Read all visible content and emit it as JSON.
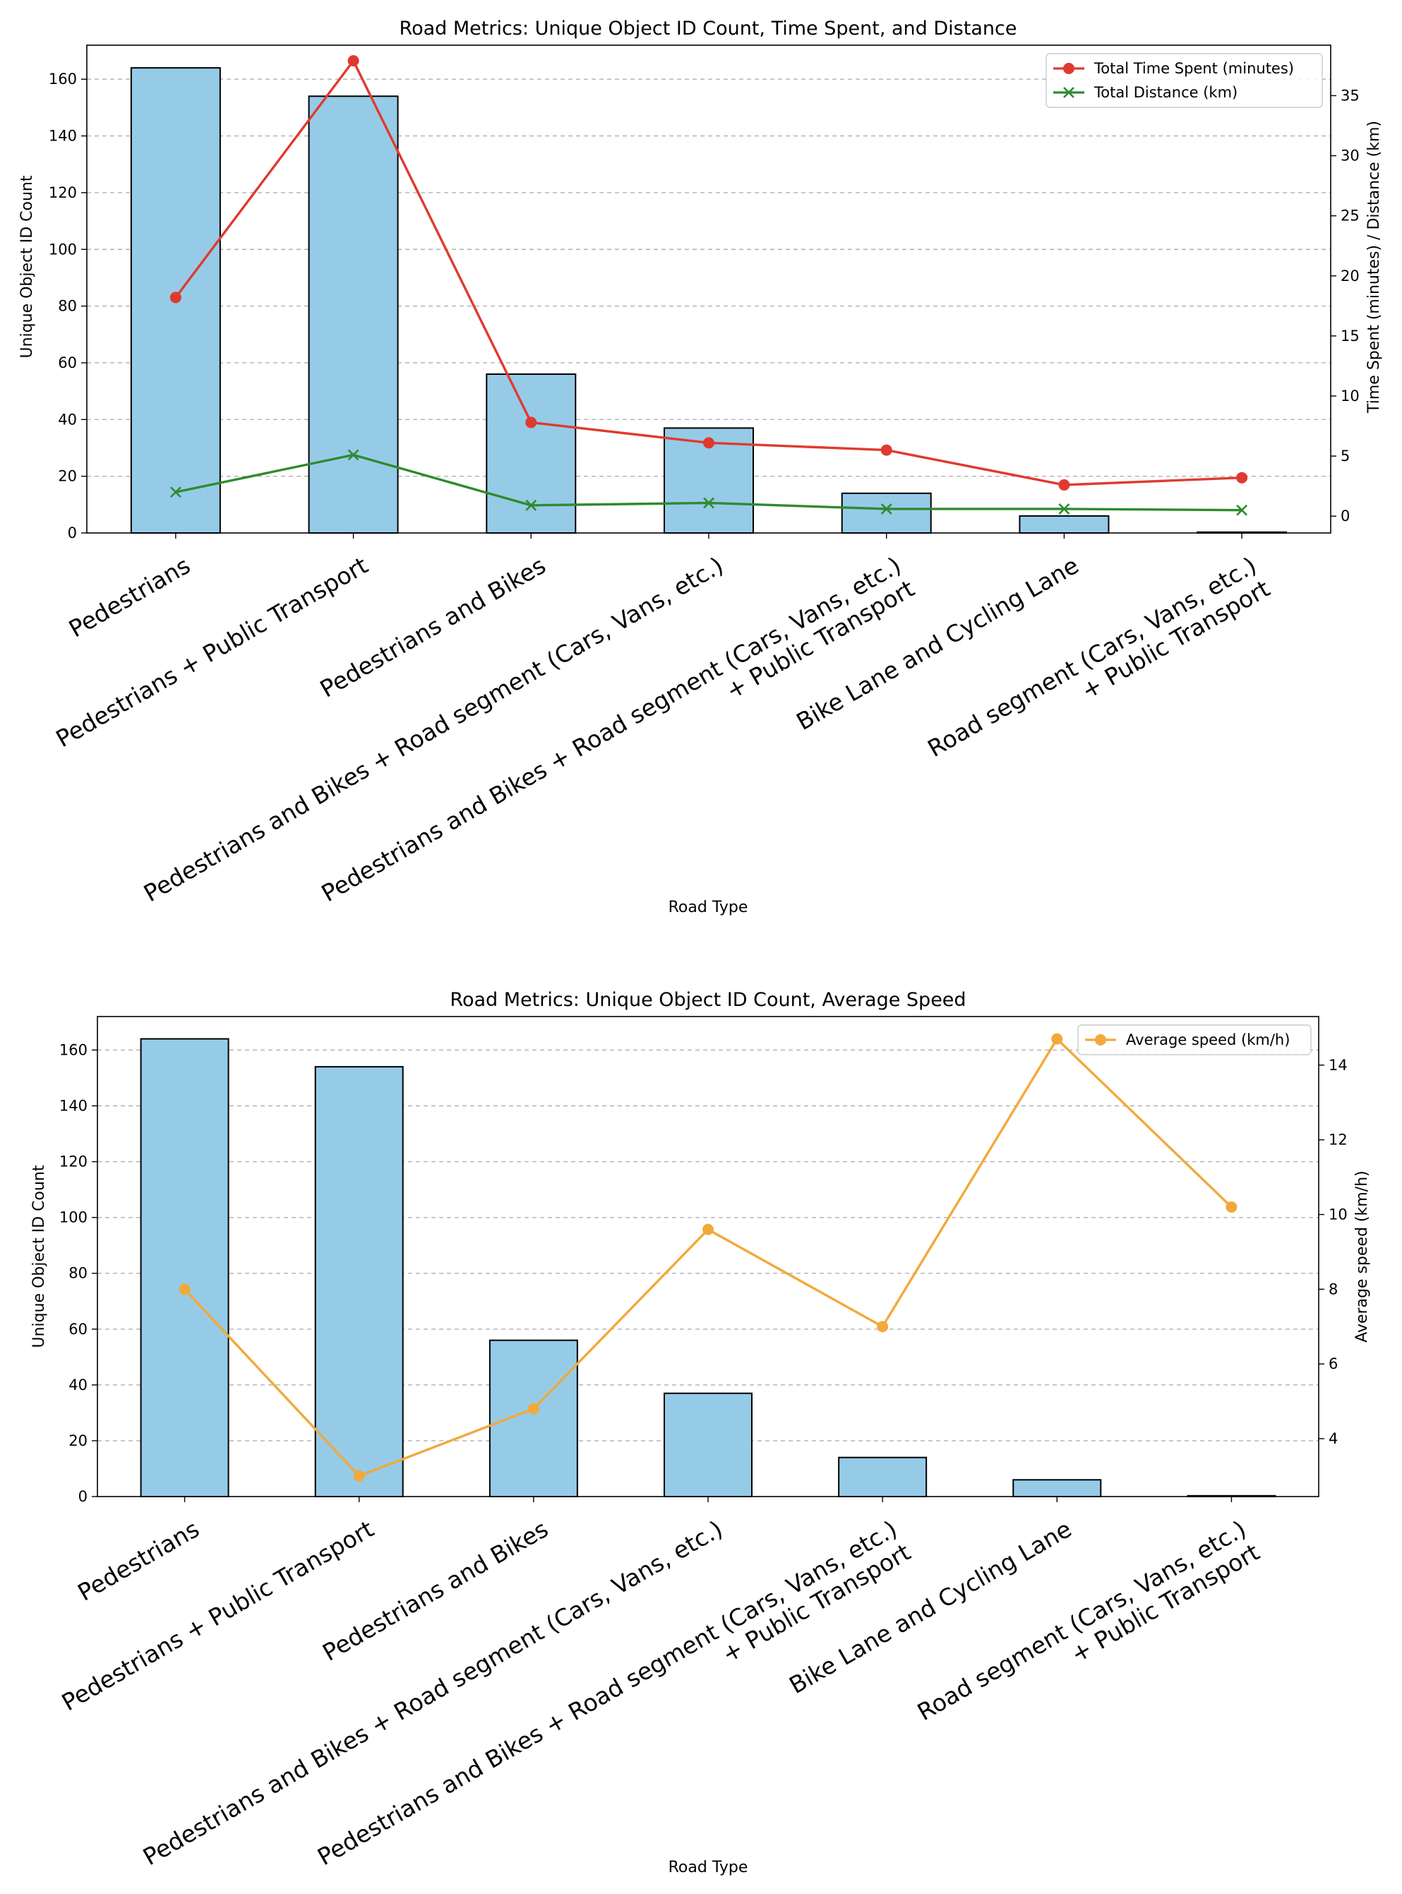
{
  "colors": {
    "bar": "#96cbe8",
    "time": "#e03a2f",
    "distance": "#2e8b2e",
    "speed": "#f2a93b",
    "grid": "#b0b0b0"
  },
  "chart_data": [
    {
      "type": "bar",
      "title": "Road Metrics: Unique Object ID Count, Time Spent, and Distance",
      "xlabel": "Road Type",
      "ylabel": "Unique Object ID Count",
      "ylabel_right": "Time Spent (minutes) / Distance (km)",
      "categories": [
        "Pedestrians",
        "Pedestrians + Public Transport",
        "Pedestrians and Bikes",
        "Pedestrians and Bikes + Road segment (Cars, Vans, etc.)",
        "Pedestrians and Bikes + Road segment (Cars, Vans, etc.)\n+ Public Transport",
        "Bike Lane and Cycling Lane",
        "Road segment (Cars, Vans, etc.)\n+ Public Transport"
      ],
      "values": [
        164,
        154,
        56,
        37,
        14,
        6,
        0.3
      ],
      "ylim": [
        0,
        172
      ],
      "yticks": [
        0,
        20,
        40,
        60,
        80,
        100,
        120,
        140,
        160
      ],
      "grid": true,
      "series": [
        {
          "name": "Total Time Spent (minutes)",
          "marker": "circle",
          "values": [
            18.2,
            37.9,
            7.8,
            6.1,
            5.5,
            2.6,
            3.2
          ]
        },
        {
          "name": "Total Distance (km)",
          "marker": "x",
          "values": [
            2.0,
            5.1,
            0.9,
            1.1,
            0.6,
            0.6,
            0.5
          ]
        }
      ],
      "y2lim": [
        -1.4,
        39.2
      ],
      "y2ticks": [
        0,
        5,
        10,
        15,
        20,
        25,
        30,
        35
      ],
      "legend": "top-right"
    },
    {
      "type": "bar",
      "title": "Road Metrics: Unique Object ID Count, Average Speed",
      "xlabel": "Road Type",
      "ylabel": "Unique Object ID Count",
      "ylabel_right": "Average speed (km/h)",
      "categories": [
        "Pedestrians",
        "Pedestrians + Public Transport",
        "Pedestrians and Bikes",
        "Pedestrians and Bikes + Road segment (Cars, Vans, etc.)",
        "Pedestrians and Bikes + Road segment (Cars, Vans, etc.)\n+ Public Transport",
        "Bike Lane and Cycling Lane",
        "Road segment (Cars, Vans, etc.)\n+ Public Transport"
      ],
      "values": [
        164,
        154,
        56,
        37,
        14,
        6,
        0.3
      ],
      "ylim": [
        0,
        172
      ],
      "yticks": [
        0,
        20,
        40,
        60,
        80,
        100,
        120,
        140,
        160
      ],
      "grid": true,
      "series": [
        {
          "name": "Average speed (km/h)",
          "marker": "circle",
          "values": [
            8.0,
            3.0,
            4.8,
            9.6,
            7.0,
            14.7,
            10.2
          ]
        }
      ],
      "y2lim": [
        2.45,
        15.3
      ],
      "y2ticks": [
        4,
        6,
        8,
        10,
        12,
        14
      ],
      "legend": "top-right"
    }
  ]
}
